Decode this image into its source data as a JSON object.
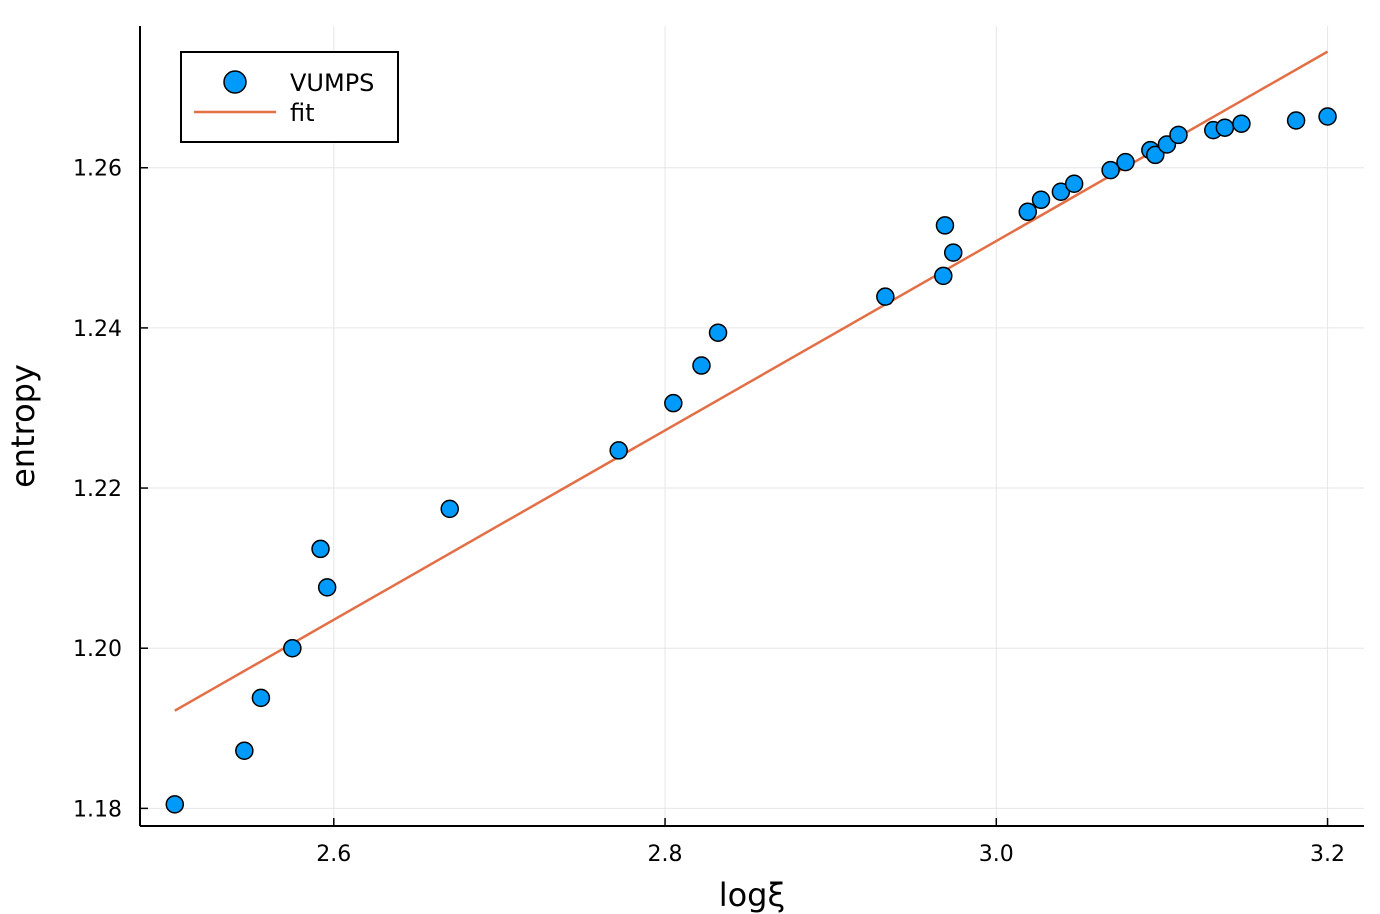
{
  "chart_data": {
    "type": "scatter",
    "xlabel": "logξ",
    "ylabel": "entropy",
    "xlim": [
      2.483,
      3.222
    ],
    "ylim": [
      1.1778,
      1.2777
    ],
    "xticks": [
      2.6,
      2.8,
      3.0,
      3.2
    ],
    "xtick_labels": [
      "2.6",
      "2.8",
      "3.0",
      "3.2"
    ],
    "yticks": [
      1.18,
      1.2,
      1.22,
      1.24,
      1.26
    ],
    "ytick_labels": [
      "1.18",
      "1.20",
      "1.22",
      "1.24",
      "1.26"
    ],
    "grid": true,
    "legend_position": "top-left",
    "series": [
      {
        "name": "VUMPS",
        "kind": "scatter",
        "color": "#009AFA",
        "x": [
          2.504,
          2.546,
          2.556,
          2.575,
          2.592,
          2.596,
          2.67,
          2.772,
          2.805,
          2.822,
          2.832,
          2.933,
          2.968,
          2.969,
          2.974,
          3.019,
          3.027,
          3.039,
          3.047,
          3.069,
          3.078,
          3.093,
          3.096,
          3.103,
          3.11,
          3.131,
          3.138,
          3.148,
          3.181,
          3.2
        ],
        "y": [
          1.1805,
          1.1872,
          1.1938,
          1.2,
          1.2124,
          1.2076,
          1.2174,
          1.2247,
          1.2306,
          1.2353,
          1.2394,
          1.2439,
          1.2465,
          1.2528,
          1.2494,
          1.2545,
          1.256,
          1.257,
          1.258,
          1.2597,
          1.2607,
          1.2622,
          1.2616,
          1.2629,
          1.2641,
          1.2647,
          1.265,
          1.2655,
          1.2659,
          1.2664
        ]
      },
      {
        "name": "fit",
        "kind": "line",
        "color": "#E26F46",
        "x": [
          2.504,
          3.2
        ],
        "y": [
          1.1922,
          1.2745
        ]
      }
    ]
  }
}
